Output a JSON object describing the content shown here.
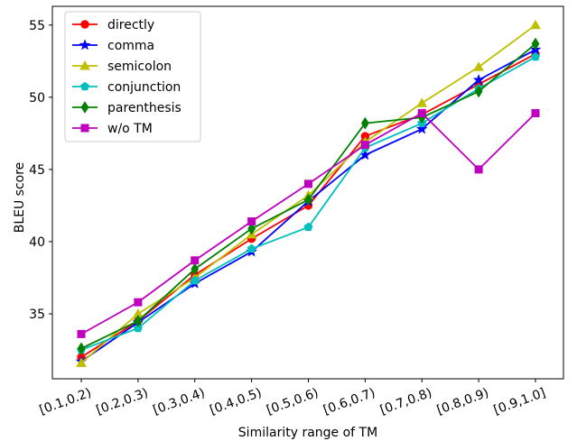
{
  "chart_data": {
    "type": "line",
    "title": "",
    "xlabel": "Similarity range of TM",
    "ylabel": "BLEU score",
    "categories": [
      "[0.1,0.2)",
      "[0.2,0.3)",
      "[0.3,0.4)",
      "[0.4,0.5)",
      "[0.5,0.6)",
      "[0.6,0.7)",
      "[0.7,0.8)",
      "[0.8,0.9)",
      "[0.9,1.0]"
    ],
    "ylim": [
      30.5,
      56.3
    ],
    "yticks": [
      35,
      40,
      45,
      50,
      55
    ],
    "grid": false,
    "legend": "top-left",
    "series": [
      {
        "name": "directly",
        "color": "#ff0000",
        "marker": "circle",
        "values": [
          32.0,
          34.5,
          37.7,
          40.2,
          42.5,
          47.3,
          48.8,
          50.9,
          53.0
        ]
      },
      {
        "name": "comma",
        "color": "#0000ff",
        "marker": "star",
        "values": [
          31.7,
          34.4,
          37.1,
          39.3,
          42.8,
          46.0,
          47.8,
          51.2,
          53.3
        ]
      },
      {
        "name": "semicolon",
        "color": "#bfbf00",
        "marker": "triangle",
        "values": [
          31.6,
          35.0,
          37.5,
          40.5,
          43.2,
          46.9,
          49.6,
          52.1,
          55.0
        ]
      },
      {
        "name": "conjunction",
        "color": "#00bfbf",
        "marker": "pentagon",
        "values": [
          32.5,
          34.0,
          37.3,
          39.5,
          41.0,
          46.5,
          48.2,
          50.6,
          52.8
        ]
      },
      {
        "name": "parenthesis",
        "color": "#008000",
        "marker": "diamond",
        "values": [
          32.6,
          34.5,
          38.1,
          40.9,
          42.9,
          48.2,
          48.6,
          50.4,
          53.7
        ]
      },
      {
        "name": "w/o TM",
        "color": "#bf00bf",
        "marker": "square",
        "values": [
          33.6,
          35.8,
          38.7,
          41.4,
          44.0,
          46.7,
          48.9,
          45.0,
          48.9
        ]
      }
    ]
  }
}
